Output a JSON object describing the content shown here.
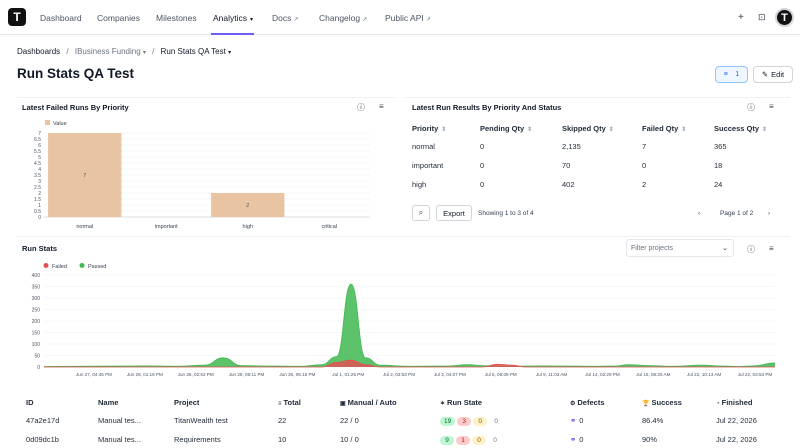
{
  "nav": {
    "logo_letter": "T",
    "items": [
      {
        "label": "Dashboard",
        "external": false
      },
      {
        "label": "Companies",
        "external": false
      },
      {
        "label": "Milestones",
        "external": false
      },
      {
        "label": "Analytics",
        "external": false,
        "active": true,
        "dropdown": true
      },
      {
        "label": "Docs",
        "external": true
      },
      {
        "label": "Changelog",
        "external": true
      },
      {
        "label": "Public API",
        "external": true
      }
    ],
    "avatar_letter": "T"
  },
  "breadcrumb": {
    "root": "Dashboards",
    "section": "IBusiness Funding",
    "current": "Run Stats QA Test"
  },
  "page_title": "Run Stats QA Test",
  "toolbar": {
    "filter_count": "1",
    "edit_label": "Edit"
  },
  "failed_runs_panel": {
    "title": "Latest Failed Runs By Priority",
    "chart_data": {
      "type": "bar",
      "title": "",
      "legend": [
        "Value"
      ],
      "categories": [
        "normal",
        "important",
        "high",
        "critical"
      ],
      "series": [
        {
          "name": "Value",
          "values": [
            7,
            0,
            2,
            0
          ],
          "color": "#e8c4a2"
        }
      ],
      "ylim": [
        0,
        7
      ],
      "yticks": [
        "0",
        "0.5",
        "1",
        "1.5",
        "2",
        "2.5",
        "3",
        "3.5",
        "4",
        "4.5",
        "5",
        "5.5",
        "6",
        "6.5",
        "7"
      ],
      "data_labels": [
        "7",
        "",
        "2",
        ""
      ]
    }
  },
  "run_results_panel": {
    "title": "Latest Run Results By Priority And Status",
    "columns": [
      "Priority",
      "Pending Qty",
      "Skipped Qty",
      "Failed Qty",
      "Success Qty"
    ],
    "rows": [
      [
        "normal",
        "0",
        "2,135",
        "7",
        "365"
      ],
      [
        "important",
        "0",
        "70",
        "0",
        "18"
      ],
      [
        "high",
        "0",
        "402",
        "2",
        "24"
      ]
    ],
    "export_label": "Export",
    "showing": "Showing 1 to 3 of 4",
    "page_label": "Page 1 of 2"
  },
  "run_stats_panel": {
    "title": "Run Stats",
    "filter_placeholder": "Filter projects",
    "chart_data": {
      "type": "area",
      "legend": [
        {
          "name": "Failed",
          "color": "#e05252"
        },
        {
          "name": "Passed",
          "color": "#3fb950"
        }
      ],
      "ylim": [
        0,
        400
      ],
      "yticks": [
        "0",
        "50",
        "100",
        "150",
        "200",
        "250",
        "300",
        "350",
        "400"
      ],
      "xticks": [
        "Jun 27, 04:45 PM",
        "Jun 28, 01:18 PM",
        "Jun 28, 02:52 PM",
        "Jun 29, 06:11 PM",
        "Jun 30, 05:15 PM",
        "Jul 1, 01:25 PM",
        "Jul 2, 03:53 PM",
        "Jul 3, 04:07 PM",
        "Jul 6, 06:09 PM",
        "Jul 9, 11:03 AM",
        "Jul 14, 02:29 PM",
        "Jul 15, 08:25 AM",
        "Jul 22, 10:13 AM",
        "Jul 22, 03:53 PM"
      ],
      "series": [
        {
          "name": "Passed",
          "color": "#3fb950",
          "points": [
            [
              0,
              2
            ],
            [
              5,
              3
            ],
            [
              10,
              4
            ],
            [
              14,
              5
            ],
            [
              18,
              3
            ],
            [
              22,
              8
            ],
            [
              24.5,
              40
            ],
            [
              27,
              6
            ],
            [
              31,
              4
            ],
            [
              35,
              3
            ],
            [
              38,
              10
            ],
            [
              40,
              45
            ],
            [
              42,
              360
            ],
            [
              44,
              40
            ],
            [
              46,
              8
            ],
            [
              50,
              3
            ],
            [
              55,
              4
            ],
            [
              58,
              10
            ],
            [
              60,
              6
            ],
            [
              64,
              3
            ],
            [
              68,
              5
            ],
            [
              72,
              4
            ],
            [
              75,
              3
            ],
            [
              78,
              4
            ],
            [
              80,
              10
            ],
            [
              83,
              6
            ],
            [
              86,
              3
            ],
            [
              90,
              8
            ],
            [
              93,
              4
            ],
            [
              95,
              2
            ],
            [
              97,
              5
            ],
            [
              100,
              18
            ]
          ]
        },
        {
          "name": "Failed",
          "color": "#e05252",
          "points": [
            [
              0,
              0
            ],
            [
              38,
              0
            ],
            [
              40,
              20
            ],
            [
              42,
              30
            ],
            [
              44,
              10
            ],
            [
              46,
              0
            ],
            [
              60,
              0
            ],
            [
              62,
              12
            ],
            [
              64,
              8
            ],
            [
              66,
              0
            ],
            [
              100,
              0
            ]
          ]
        }
      ]
    }
  },
  "runs_table": {
    "columns": [
      "ID",
      "Name",
      "Project",
      "Total",
      "Manual / Auto",
      "Run State",
      "Defects",
      "Success",
      "Finished"
    ],
    "column_icons": [
      "",
      "",
      "",
      "≡",
      "▣",
      "✶",
      "⚙",
      "🏆",
      "◔"
    ],
    "rows": [
      {
        "id": "47a2e17d",
        "name": "Manual tes...",
        "project": "TitanWealth test",
        "total": "22",
        "manual_auto": "22 / 0",
        "state": [
          "19",
          "3",
          "0",
          "0"
        ],
        "defects": "0",
        "success": "86.4%",
        "finished": "Jul 22, 2026"
      },
      {
        "id": "0d09dc1b",
        "name": "Manual tes...",
        "project": "Requirements",
        "total": "10",
        "manual_auto": "10 / 0",
        "state": [
          "9",
          "1",
          "0",
          "0"
        ],
        "defects": "0",
        "success": "90%",
        "finished": "Jul 22, 2026"
      }
    ]
  }
}
